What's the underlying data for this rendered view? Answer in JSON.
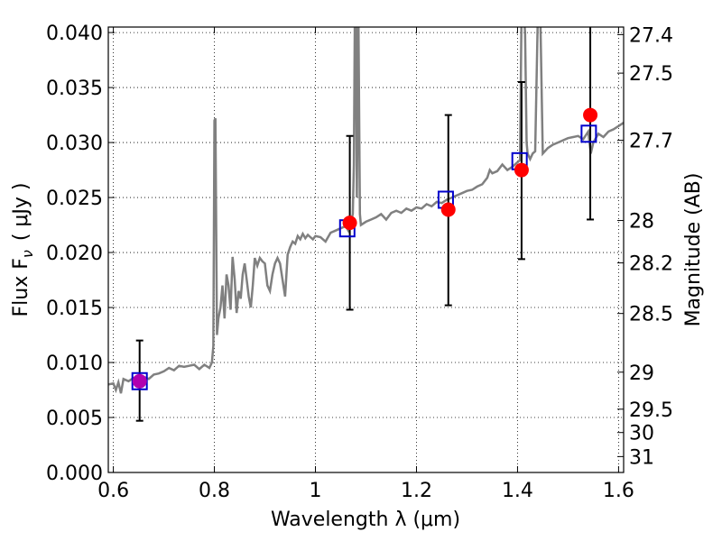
{
  "chart_data": {
    "type": "scatter",
    "xlabel": "Wavelength  λ (μm)",
    "ylabel": "Flux  F",
    "ylabel_sub": "ν",
    "ylabel_unit": "( μJy )",
    "y2label": "Magnitude (AB)",
    "xlim": [
      0.59,
      1.61
    ],
    "ylim": [
      0.0,
      0.0405
    ],
    "grid": true,
    "x_ticks": [
      {
        "value": 0.6,
        "label": "0.6"
      },
      {
        "value": 0.8,
        "label": "0.8"
      },
      {
        "value": 1.0,
        "label": "1"
      },
      {
        "value": 1.2,
        "label": "1.2"
      },
      {
        "value": 1.4,
        "label": "1.4"
      },
      {
        "value": 1.6,
        "label": "1.6"
      }
    ],
    "y_ticks": [
      {
        "value": 0.0,
        "label": "0.000"
      },
      {
        "value": 0.005,
        "label": "0.005"
      },
      {
        "value": 0.01,
        "label": "0.010"
      },
      {
        "value": 0.015,
        "label": "0.015"
      },
      {
        "value": 0.02,
        "label": "0.020"
      },
      {
        "value": 0.025,
        "label": "0.025"
      },
      {
        "value": 0.03,
        "label": "0.030"
      },
      {
        "value": 0.035,
        "label": "0.035"
      },
      {
        "value": 0.04,
        "label": "0.040"
      }
    ],
    "y2_ticks": [
      {
        "value": 27.4,
        "label": "27.4"
      },
      {
        "value": 27.5,
        "label": "27.5"
      },
      {
        "value": 27.7,
        "label": "27.7"
      },
      {
        "value": 28.0,
        "label": "28"
      },
      {
        "value": 28.2,
        "label": "28.2"
      },
      {
        "value": 28.5,
        "label": "28.5"
      },
      {
        "value": 29.0,
        "label": "29"
      },
      {
        "value": 29.5,
        "label": "29.5"
      },
      {
        "value": 30.0,
        "label": "30"
      },
      {
        "value": 31.0,
        "label": "31"
      }
    ],
    "spectrum": {
      "color": "#808080",
      "points": [
        [
          0.59,
          0.008
        ],
        [
          0.6,
          0.0081
        ],
        [
          0.605,
          0.0075
        ],
        [
          0.61,
          0.0082
        ],
        [
          0.615,
          0.0072
        ],
        [
          0.62,
          0.0085
        ],
        [
          0.63,
          0.0083
        ],
        [
          0.64,
          0.0086
        ],
        [
          0.65,
          0.0084
        ],
        [
          0.66,
          0.0087
        ],
        [
          0.67,
          0.0085
        ],
        [
          0.68,
          0.0089
        ],
        [
          0.69,
          0.009
        ],
        [
          0.7,
          0.0092
        ],
        [
          0.71,
          0.0095
        ],
        [
          0.72,
          0.0093
        ],
        [
          0.73,
          0.0097
        ],
        [
          0.74,
          0.0096
        ],
        [
          0.75,
          0.0097
        ],
        [
          0.76,
          0.0098
        ],
        [
          0.77,
          0.0094
        ],
        [
          0.78,
          0.0098
        ],
        [
          0.79,
          0.0095
        ],
        [
          0.795,
          0.01
        ],
        [
          0.798,
          0.0115
        ],
        [
          0.8,
          0.032
        ],
        [
          0.802,
          0.0322
        ],
        [
          0.805,
          0.0125
        ],
        [
          0.808,
          0.014
        ],
        [
          0.812,
          0.015
        ],
        [
          0.816,
          0.017
        ],
        [
          0.82,
          0.014
        ],
        [
          0.824,
          0.018
        ],
        [
          0.828,
          0.017
        ],
        [
          0.832,
          0.0148
        ],
        [
          0.836,
          0.0196
        ],
        [
          0.84,
          0.0176
        ],
        [
          0.844,
          0.0145
        ],
        [
          0.848,
          0.0165
        ],
        [
          0.852,
          0.0158
        ],
        [
          0.856,
          0.018
        ],
        [
          0.86,
          0.019
        ],
        [
          0.864,
          0.0175
        ],
        [
          0.868,
          0.016
        ],
        [
          0.872,
          0.015
        ],
        [
          0.876,
          0.017
        ],
        [
          0.88,
          0.0195
        ],
        [
          0.885,
          0.0188
        ],
        [
          0.89,
          0.0195
        ],
        [
          0.895,
          0.0192
        ],
        [
          0.9,
          0.019
        ],
        [
          0.905,
          0.017
        ],
        [
          0.91,
          0.0165
        ],
        [
          0.915,
          0.018
        ],
        [
          0.92,
          0.019
        ],
        [
          0.925,
          0.0195
        ],
        [
          0.93,
          0.019
        ],
        [
          0.935,
          0.0175
        ],
        [
          0.94,
          0.016
        ],
        [
          0.945,
          0.0198
        ],
        [
          0.95,
          0.0205
        ],
        [
          0.955,
          0.021
        ],
        [
          0.96,
          0.0208
        ],
        [
          0.965,
          0.0215
        ],
        [
          0.97,
          0.0212
        ],
        [
          0.975,
          0.0217
        ],
        [
          0.98,
          0.0213
        ],
        [
          0.985,
          0.0216
        ],
        [
          0.99,
          0.0214
        ],
        [
          0.995,
          0.0212
        ],
        [
          1.0,
          0.0215
        ],
        [
          1.01,
          0.0214
        ],
        [
          1.02,
          0.021
        ],
        [
          1.03,
          0.0218
        ],
        [
          1.04,
          0.022
        ],
        [
          1.05,
          0.0222
        ],
        [
          1.06,
          0.0224
        ],
        [
          1.065,
          0.022
        ],
        [
          1.07,
          0.0227
        ],
        [
          1.074,
          0.0235
        ],
        [
          1.076,
          0.028
        ],
        [
          1.078,
          0.042
        ],
        [
          1.08,
          0.042
        ],
        [
          1.082,
          0.025
        ],
        [
          1.085,
          0.042
        ],
        [
          1.088,
          0.0235
        ],
        [
          1.09,
          0.0225
        ],
        [
          1.1,
          0.0228
        ],
        [
          1.11,
          0.023
        ],
        [
          1.12,
          0.0232
        ],
        [
          1.13,
          0.0235
        ],
        [
          1.14,
          0.023
        ],
        [
          1.15,
          0.0236
        ],
        [
          1.16,
          0.0238
        ],
        [
          1.17,
          0.0236
        ],
        [
          1.18,
          0.024
        ],
        [
          1.19,
          0.0238
        ],
        [
          1.2,
          0.0241
        ],
        [
          1.21,
          0.024
        ],
        [
          1.22,
          0.0244
        ],
        [
          1.23,
          0.0242
        ],
        [
          1.24,
          0.0246
        ],
        [
          1.25,
          0.0245
        ],
        [
          1.26,
          0.0248
        ],
        [
          1.27,
          0.025
        ],
        [
          1.28,
          0.0252
        ],
        [
          1.29,
          0.0254
        ],
        [
          1.3,
          0.0256
        ],
        [
          1.31,
          0.0257
        ],
        [
          1.32,
          0.026
        ],
        [
          1.33,
          0.0262
        ],
        [
          1.34,
          0.0268
        ],
        [
          1.345,
          0.0275
        ],
        [
          1.35,
          0.0272
        ],
        [
          1.36,
          0.0274
        ],
        [
          1.37,
          0.028
        ],
        [
          1.38,
          0.0275
        ],
        [
          1.39,
          0.0278
        ],
        [
          1.4,
          0.0282
        ],
        [
          1.405,
          0.0284
        ],
        [
          1.408,
          0.042
        ],
        [
          1.412,
          0.042
        ],
        [
          1.415,
          0.04
        ],
        [
          1.418,
          0.03
        ],
        [
          1.42,
          0.029
        ],
        [
          1.425,
          0.0285
        ],
        [
          1.43,
          0.029
        ],
        [
          1.435,
          0.0292
        ],
        [
          1.44,
          0.041
        ],
        [
          1.445,
          0.042
        ],
        [
          1.45,
          0.029
        ],
        [
          1.46,
          0.0295
        ],
        [
          1.47,
          0.0298
        ],
        [
          1.48,
          0.03
        ],
        [
          1.49,
          0.0302
        ],
        [
          1.5,
          0.0304
        ],
        [
          1.51,
          0.0305
        ],
        [
          1.52,
          0.0306
        ],
        [
          1.53,
          0.0303
        ],
        [
          1.54,
          0.031
        ],
        [
          1.545,
          0.029
        ],
        [
          1.55,
          0.03
        ],
        [
          1.56,
          0.0308
        ],
        [
          1.57,
          0.0305
        ],
        [
          1.58,
          0.031
        ],
        [
          1.59,
          0.0312
        ],
        [
          1.6,
          0.0315
        ],
        [
          1.61,
          0.0318
        ]
      ]
    },
    "observed": [
      {
        "x": 0.652,
        "y": 0.0083,
        "err_low": 0.0047,
        "err_high": 0.012,
        "color": "#b000b0"
      },
      {
        "x": 1.068,
        "y": 0.0227,
        "err_low": 0.0148,
        "err_high": 0.0306,
        "color": "#ff0000"
      },
      {
        "x": 1.263,
        "y": 0.0239,
        "err_low": 0.0152,
        "err_high": 0.0325,
        "color": "#ff0000"
      },
      {
        "x": 1.408,
        "y": 0.0275,
        "err_low": 0.0194,
        "err_high": 0.0355,
        "color": "#ff0000"
      },
      {
        "x": 1.544,
        "y": 0.0325,
        "err_low": 0.023,
        "err_high": 0.042,
        "color": "#ff0000"
      }
    ],
    "model": [
      {
        "x": 0.652,
        "y": 0.0083,
        "color": "#0000cc"
      },
      {
        "x": 1.063,
        "y": 0.0222,
        "color": "#0000cc"
      },
      {
        "x": 1.258,
        "y": 0.0248,
        "color": "#0000cc"
      },
      {
        "x": 1.404,
        "y": 0.0283,
        "color": "#0000cc"
      },
      {
        "x": 1.541,
        "y": 0.0308,
        "color": "#0000cc"
      }
    ]
  }
}
